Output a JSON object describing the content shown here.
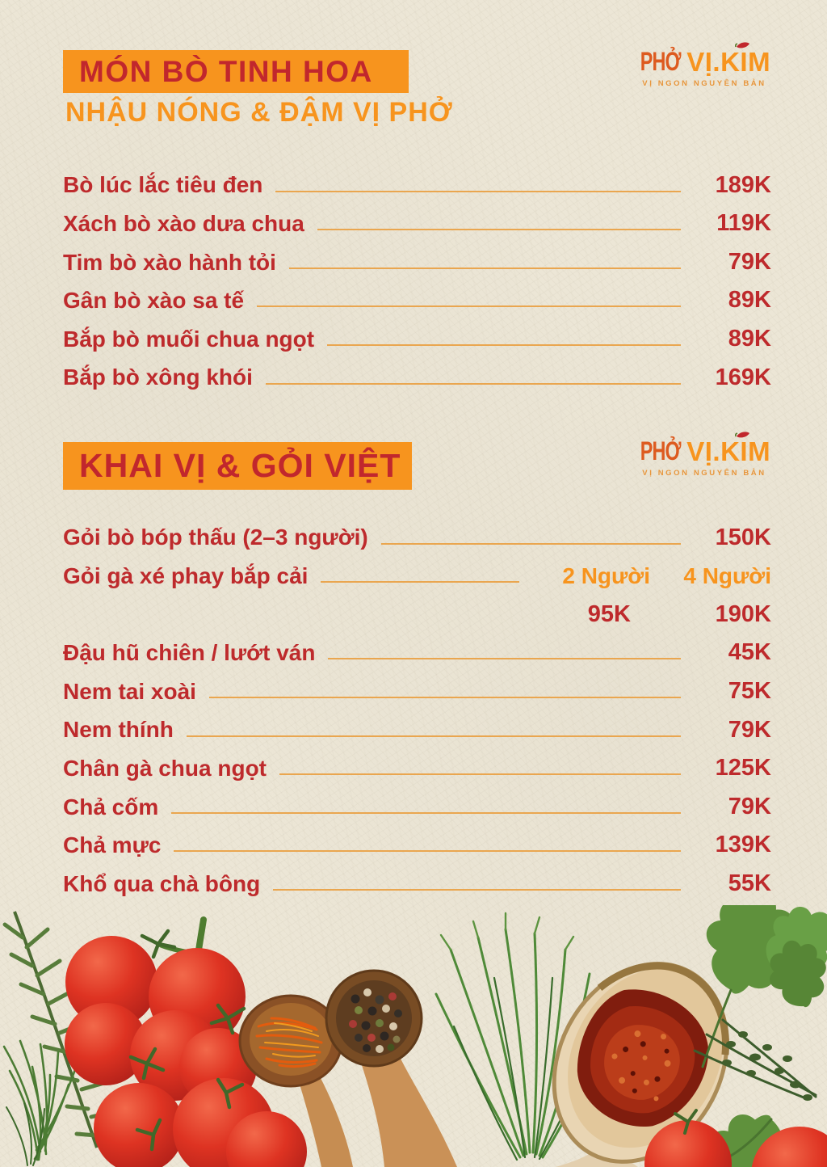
{
  "brand": {
    "pho": "PHỞ",
    "name": "VỊ.KIM",
    "tagline": "VỊ NGON NGUYÊN BẢN"
  },
  "colors": {
    "banner_orange": "#f7941e",
    "title_red": "#c1272d",
    "item_red": "#be2a2c",
    "leader_line": "#eaa64f",
    "paper": "#ece6d6"
  },
  "sections": [
    {
      "title": "MÓN BÒ TINH HOA",
      "subtitle": "NHẬU NÓNG & ĐẬM VỊ PHỞ",
      "items": [
        {
          "name": "Bò lúc lắc tiêu đen",
          "price": "189K"
        },
        {
          "name": "Xách bò xào dưa chua",
          "price": "119K"
        },
        {
          "name": "Tim bò xào hành tỏi",
          "price": "79K"
        },
        {
          "name": "Gân bò xào sa tế",
          "price": "89K"
        },
        {
          "name": "Bắp bò muối chua ngọt",
          "price": "89K"
        },
        {
          "name": "Bắp bò xông khói",
          "price": "169K"
        }
      ]
    },
    {
      "title": "KHAI VỊ & GỎI VIỆT",
      "items": [
        {
          "name": "Gỏi bò bóp thấu (2–3 người)",
          "price": "150K"
        },
        {
          "name": "Gỏi gà xé phay bắp cải",
          "cols": [
            "2 Người",
            "4 Người"
          ],
          "cols_style": "label"
        },
        {
          "name": "",
          "leader": false,
          "cols": [
            "95K",
            "190K"
          ],
          "cols_style": "price"
        },
        {
          "name": "Đậu hũ chiên / lướt ván",
          "price": "45K"
        },
        {
          "name": "Nem tai xoài",
          "price": "75K"
        },
        {
          "name": "Nem thính",
          "price": "79K"
        },
        {
          "name": "Chân gà chua ngọt",
          "price": "125K"
        },
        {
          "name": "Chả cốm",
          "price": "79K"
        },
        {
          "name": "Chả mực",
          "price": "139K"
        },
        {
          "name": "Khổ qua chà bông",
          "price": "55K"
        }
      ]
    }
  ]
}
